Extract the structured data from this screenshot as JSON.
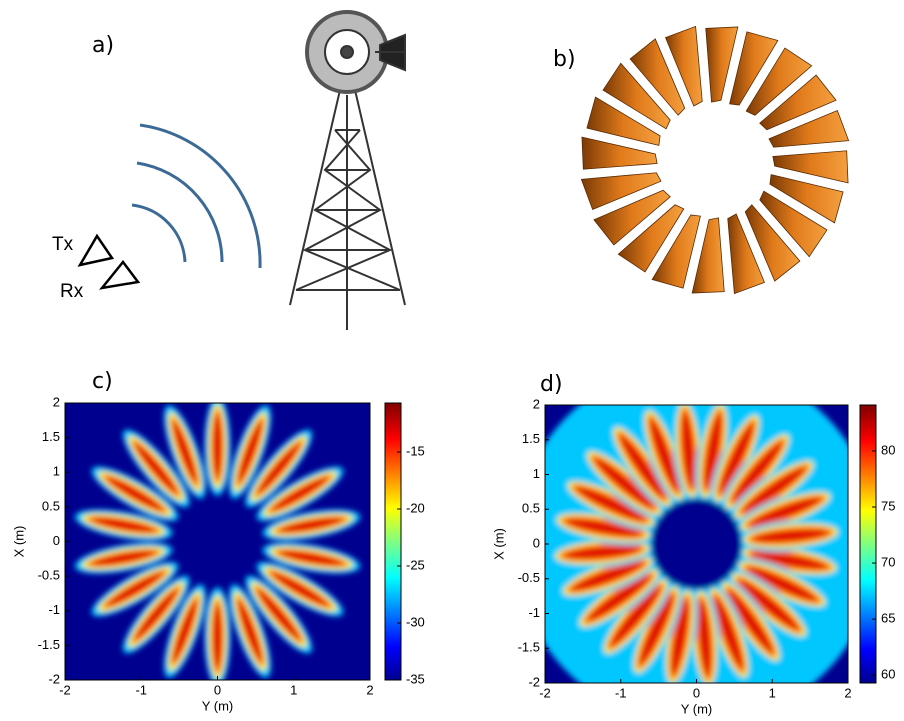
{
  "panels": [
    {
      "label": "a)",
      "tx": "Tx",
      "rx": "Rx"
    },
    {
      "label": "b)"
    }
  ],
  "chart_data": [
    {
      "type": "heatmap",
      "label": "c)",
      "xlabel": "Y (m)",
      "ylabel": "X (m)",
      "xlim": [
        -2,
        2
      ],
      "ylim": [
        -2,
        2
      ],
      "xticks": [
        -2,
        -1,
        0,
        1,
        2
      ],
      "yticks": [
        -2,
        -1.5,
        -1,
        -0.5,
        0,
        0.5,
        1,
        1.5,
        2
      ],
      "clim": [
        -35,
        -10.7
      ],
      "cticks": [
        -35,
        -30,
        -25,
        -20,
        -15
      ]
    },
    {
      "type": "heatmap",
      "label": "d)",
      "xlabel": "Y (m)",
      "ylabel": "X (m)",
      "xlim": [
        -2,
        2
      ],
      "ylim": [
        -2,
        2
      ],
      "xticks": [
        -2,
        -1,
        0,
        1,
        2
      ],
      "yticks": [
        -2,
        -1.5,
        -1,
        -0.5,
        0,
        0.5,
        1,
        1.5,
        2
      ],
      "clim": [
        59.3,
        84.1
      ],
      "cticks": [
        60,
        65,
        70,
        75,
        80
      ]
    }
  ]
}
